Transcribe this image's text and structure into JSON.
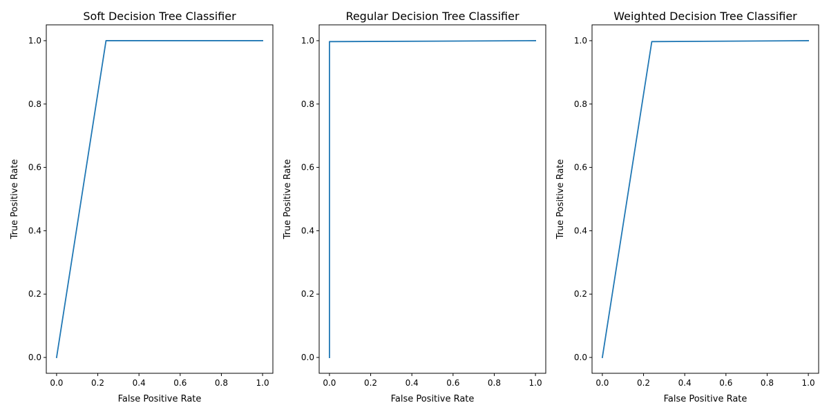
{
  "chart_data": [
    {
      "type": "line",
      "title": "Soft Decision Tree Classifier",
      "xlabel": "False Positive Rate",
      "ylabel": "True Positive Rate",
      "xlim": [
        -0.05,
        1.05
      ],
      "ylim": [
        -0.05,
        1.05
      ],
      "xticks": [
        0.0,
        0.2,
        0.4,
        0.6,
        0.8,
        1.0
      ],
      "xtick_labels": [
        "0.0",
        "0.2",
        "0.4",
        "0.6",
        "0.8",
        "1.0"
      ],
      "yticks": [
        0.0,
        0.2,
        0.4,
        0.6,
        0.8,
        1.0
      ],
      "ytick_labels": [
        "0.0",
        "0.2",
        "0.4",
        "0.6",
        "0.8",
        "1.0"
      ],
      "grid": false,
      "line_color": "#1f77b4",
      "series": [
        {
          "x": [
            0.0,
            0.24,
            1.0
          ],
          "y": [
            0.0,
            1.0,
            1.0
          ]
        }
      ]
    },
    {
      "type": "line",
      "title": "Regular Decision Tree Classifier",
      "xlabel": "False Positive Rate",
      "ylabel": "True Positive Rate",
      "xlim": [
        -0.05,
        1.05
      ],
      "ylim": [
        -0.05,
        1.05
      ],
      "xticks": [
        0.0,
        0.2,
        0.4,
        0.6,
        0.8,
        1.0
      ],
      "xtick_labels": [
        "0.0",
        "0.2",
        "0.4",
        "0.6",
        "0.8",
        "1.0"
      ],
      "yticks": [
        0.0,
        0.2,
        0.4,
        0.6,
        0.8,
        1.0
      ],
      "ytick_labels": [
        "0.0",
        "0.2",
        "0.4",
        "0.6",
        "0.8",
        "1.0"
      ],
      "grid": false,
      "line_color": "#1f77b4",
      "series": [
        {
          "x": [
            0.0,
            0.0,
            1.0
          ],
          "y": [
            0.0,
            0.997,
            1.0
          ]
        }
      ]
    },
    {
      "type": "line",
      "title": "Weighted Decision Tree Classifier",
      "xlabel": "False Positive Rate",
      "ylabel": "True Positive Rate",
      "xlim": [
        -0.05,
        1.05
      ],
      "ylim": [
        -0.05,
        1.05
      ],
      "xticks": [
        0.0,
        0.2,
        0.4,
        0.6,
        0.8,
        1.0
      ],
      "xtick_labels": [
        "0.0",
        "0.2",
        "0.4",
        "0.6",
        "0.8",
        "1.0"
      ],
      "yticks": [
        0.0,
        0.2,
        0.4,
        0.6,
        0.8,
        1.0
      ],
      "ytick_labels": [
        "0.0",
        "0.2",
        "0.4",
        "0.6",
        "0.8",
        "1.0"
      ],
      "grid": false,
      "line_color": "#1f77b4",
      "series": [
        {
          "x": [
            0.0,
            0.24,
            1.0
          ],
          "y": [
            0.0,
            0.997,
            1.0
          ]
        }
      ]
    }
  ]
}
